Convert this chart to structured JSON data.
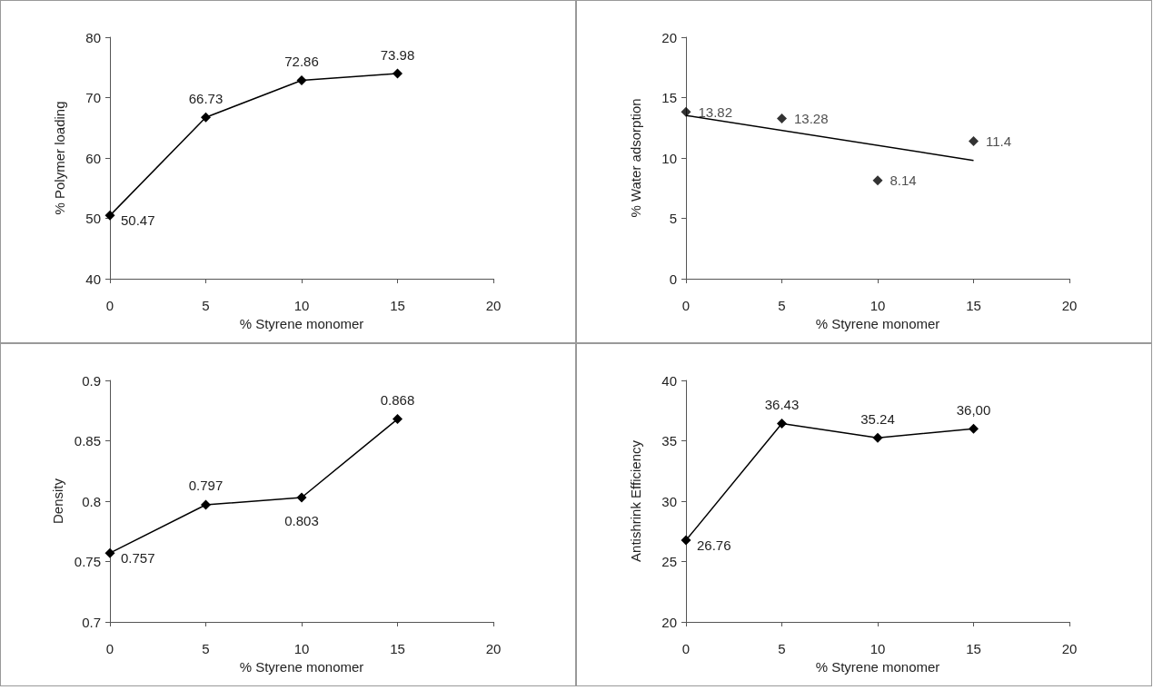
{
  "chart_data": [
    {
      "type": "line",
      "xlabel": "% Styrene monomer",
      "ylabel": "% Polymer loading",
      "x": [
        0,
        5,
        10,
        15
      ],
      "series": [
        {
          "color": "#000000",
          "values": [
            50.47,
            66.73,
            72.86,
            73.98
          ]
        }
      ],
      "data_labels": true,
      "marker": "diamond",
      "xlim": [
        0,
        20
      ],
      "xticks": [
        0,
        5,
        10,
        15,
        20
      ],
      "ylim": [
        40,
        80
      ],
      "yticks": [
        40,
        50,
        60,
        70,
        80
      ],
      "grid": false
    },
    {
      "type": "scatter",
      "xlabel": "% Styrene monomer",
      "ylabel": "% Water adsorption",
      "x": [
        0,
        5,
        10,
        15
      ],
      "series": [
        {
          "color": "#000000",
          "values": [
            13.82,
            13.28,
            8.14,
            11.4
          ],
          "value_labels": [
            "13.82",
            "13.28",
            "8.14",
            "11.4"
          ]
        },
        {
          "type": "line",
          "color": "#000000",
          "x": [
            0,
            15
          ],
          "values": [
            13.52,
            9.8
          ],
          "marker": "none"
        }
      ],
      "marker": "diamond",
      "xlim": [
        0,
        20
      ],
      "xticks": [
        0,
        5,
        10,
        15,
        20
      ],
      "ylim": [
        0,
        20
      ],
      "yticks": [
        0,
        5,
        10,
        15,
        20
      ],
      "grid": false
    },
    {
      "type": "line",
      "xlabel": "% Styrene monomer",
      "ylabel": "Density",
      "x": [
        0,
        5,
        10,
        15
      ],
      "series": [
        {
          "color": "#000000",
          "values": [
            0.757,
            0.797,
            0.803,
            0.868
          ]
        }
      ],
      "data_labels": true,
      "marker": "diamond",
      "xlim": [
        0,
        20
      ],
      "xticks": [
        0,
        5,
        10,
        15,
        20
      ],
      "ylim": [
        0.7,
        0.9
      ],
      "yticks": [
        0.7,
        0.75,
        0.8,
        0.85,
        0.9
      ],
      "grid": false
    },
    {
      "type": "line",
      "xlabel": "% Styrene monomer",
      "ylabel": "Antishrink Efficiency",
      "x": [
        0,
        5,
        10,
        15
      ],
      "series": [
        {
          "color": "#000000",
          "values": [
            26.76,
            36.43,
            35.24,
            36.0
          ],
          "value_labels": [
            "26.76",
            "36.43",
            "35.24",
            "36,00"
          ]
        }
      ],
      "marker": "diamond",
      "xlim": [
        0,
        20
      ],
      "xticks": [
        0,
        5,
        10,
        15,
        20
      ],
      "ylim": [
        20,
        40
      ],
      "yticks": [
        20,
        25,
        30,
        35,
        40
      ],
      "grid": false
    }
  ]
}
